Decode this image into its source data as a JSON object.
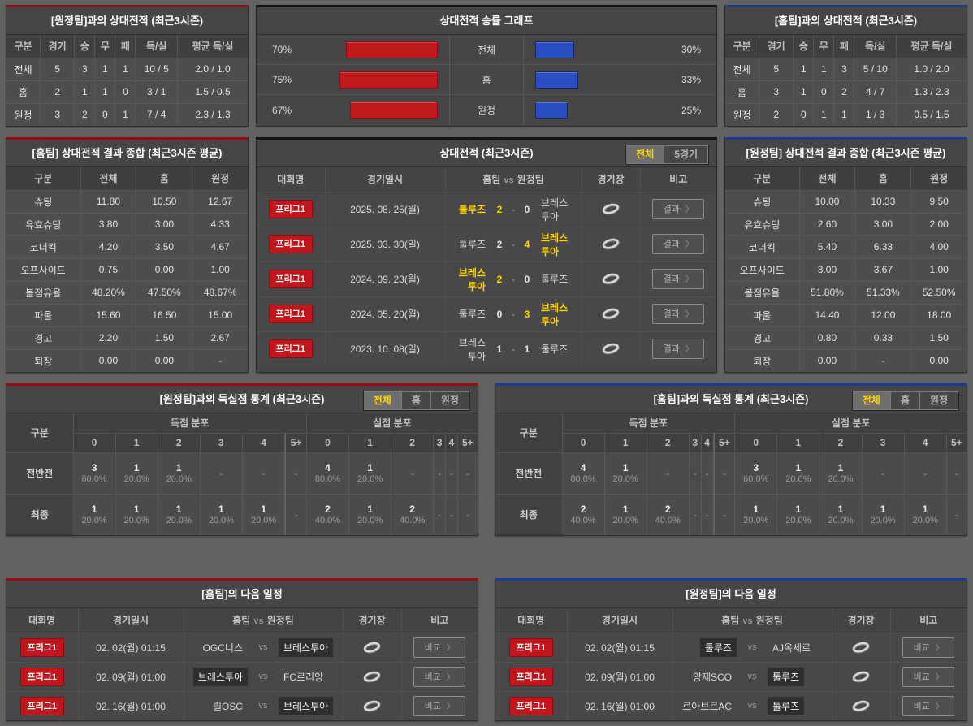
{
  "ui": {
    "chevron": "〉",
    "score_sep": "-"
  },
  "colors": {
    "accent_red": "#8e1014",
    "accent_blue": "#1e3a8f",
    "bar_red": "#c2191f",
    "bar_blue": "#2a4fc0",
    "highlight_yellow": "#ffd400",
    "badge_red": "#c3161c",
    "panel_bg": "#464646",
    "page_bg": "#636363"
  },
  "chart_data": {
    "type": "bar",
    "orientation": "horizontal",
    "title": "상대전적 승률 그래프",
    "categories": [
      "전체",
      "홈",
      "원정"
    ],
    "series": [
      {
        "name": "left-red",
        "color": "#c2191f",
        "unit": "%",
        "values": [
          70,
          75,
          67
        ]
      },
      {
        "name": "right-blue",
        "color": "#2a4fc0",
        "unit": "%",
        "values": [
          30,
          33,
          25
        ]
      }
    ],
    "xlim": [
      0,
      100
    ],
    "grid": false,
    "legend": "none"
  },
  "panels": {
    "h2h_vs_away": {
      "title": "[원정팀]과의 상대전적 (최근3시즌)",
      "headers": [
        "구분",
        "경기",
        "승",
        "무",
        "패",
        "득/실",
        "평균 득/실"
      ],
      "rows": [
        [
          "전체",
          "5",
          "3",
          "1",
          "1",
          "10 / 5",
          "2.0 / 1.0"
        ],
        [
          "홈",
          "2",
          "1",
          "1",
          "0",
          "3 / 1",
          "1.5 / 0.5"
        ],
        [
          "원정",
          "3",
          "2",
          "0",
          "1",
          "7 / 4",
          "2.3 / 1.3"
        ]
      ]
    },
    "winrate": {
      "title": "상대전적 승률 그래프",
      "rows": [
        {
          "label": "전체",
          "left_label": "70%",
          "left_value": 70,
          "right_label": "30%",
          "right_value": 30
        },
        {
          "label": "홈",
          "left_label": "75%",
          "left_value": 75,
          "right_label": "33%",
          "right_value": 33
        },
        {
          "label": "원정",
          "left_label": "67%",
          "left_value": 67,
          "right_label": "25%",
          "right_value": 25
        }
      ]
    },
    "h2h_vs_home": {
      "title": "[홈팀]과의 상대전적 (최근3시즌)",
      "headers": [
        "구분",
        "경기",
        "승",
        "무",
        "패",
        "득/실",
        "평균 득/실"
      ],
      "rows": [
        [
          "전체",
          "5",
          "1",
          "1",
          "3",
          "5 / 10",
          "1.0 / 2.0"
        ],
        [
          "홈",
          "3",
          "1",
          "0",
          "2",
          "4 / 7",
          "1.3 / 2.3"
        ],
        [
          "원정",
          "2",
          "0",
          "1",
          "1",
          "1 / 3",
          "0.5 / 1.5"
        ]
      ]
    },
    "home_summary": {
      "title": "[홈팀] 상대전적 결과 종합 (최근3시즌 평균)",
      "headers": [
        "구분",
        "전체",
        "홈",
        "원정"
      ],
      "rows": [
        [
          "슈팅",
          "11.80",
          "10.50",
          "12.67"
        ],
        [
          "유효슈팅",
          "3.80",
          "3.00",
          "4.33"
        ],
        [
          "코너킥",
          "4.20",
          "3.50",
          "4.67"
        ],
        [
          "오프사이드",
          "0.75",
          "0.00",
          "1.00"
        ],
        [
          "볼점유율",
          "48.20%",
          "47.50%",
          "48.67%"
        ],
        [
          "파울",
          "15.60",
          "16.50",
          "15.00"
        ],
        [
          "경고",
          "2.20",
          "1.50",
          "2.67"
        ],
        [
          "퇴장",
          "0.00",
          "0.00",
          "-"
        ]
      ]
    },
    "away_summary": {
      "title": "[원정팀] 상대전적 결과 종합 (최근3시즌 평균)",
      "headers": [
        "구분",
        "전체",
        "홈",
        "원정"
      ],
      "rows": [
        [
          "슈팅",
          "10.00",
          "10.33",
          "9.50"
        ],
        [
          "유효슈팅",
          "2.60",
          "3.00",
          "2.00"
        ],
        [
          "코너킥",
          "5.40",
          "6.33",
          "4.00"
        ],
        [
          "오프사이드",
          "3.00",
          "3.67",
          "1.00"
        ],
        [
          "볼점유율",
          "51.80%",
          "51.33%",
          "52.50%"
        ],
        [
          "파울",
          "14.40",
          "12.00",
          "18.00"
        ],
        [
          "경고",
          "0.80",
          "0.33",
          "1.50"
        ],
        [
          "퇴장",
          "0.00",
          "-",
          "0.00"
        ]
      ]
    },
    "matches": {
      "title": "상대전적 (최근3시즌)",
      "tabs": [
        {
          "label": "전체",
          "active": true
        },
        {
          "label": "5경기",
          "active": false
        }
      ],
      "headers": {
        "league": "대회명",
        "date": "경기일시",
        "home": "홈팀",
        "vs": "vs",
        "away": "원정팀",
        "stadium": "경기장",
        "note": "비고"
      },
      "button_label": "결과",
      "rows": [
        {
          "league": "프리그1",
          "date": "2025. 08. 25(월)",
          "home": "툴루즈",
          "home_score": "2",
          "away_score": "0",
          "away": "브레스투아",
          "home_win": true
        },
        {
          "league": "프리그1",
          "date": "2025. 03. 30(일)",
          "home": "툴루즈",
          "home_score": "2",
          "away_score": "4",
          "away": "브레스투아",
          "away_win": true
        },
        {
          "league": "프리그1",
          "date": "2024. 09. 23(월)",
          "home": "브레스투아",
          "home_score": "2",
          "away_score": "0",
          "away": "툴루즈",
          "home_win": true
        },
        {
          "league": "프리그1",
          "date": "2024. 05. 20(월)",
          "home": "툴루즈",
          "home_score": "0",
          "away_score": "3",
          "away": "브레스투아",
          "away_win": true
        },
        {
          "league": "프리그1",
          "date": "2023. 10. 08(일)",
          "home": "브레스투아",
          "home_score": "1",
          "away_score": "1",
          "away": "툴루즈"
        }
      ]
    },
    "goals_vs_away": {
      "title": "[원정팀]과의 득실점 통계 (최근3시즌)",
      "tabs": [
        {
          "label": "전체",
          "active": true
        },
        {
          "label": "홈",
          "active": false
        },
        {
          "label": "원정",
          "active": false
        }
      ],
      "col_label": "구분",
      "group_scored": "득점 분포",
      "group_conceded": "실점 분포",
      "score_headers": [
        "0",
        "1",
        "2",
        "3",
        "4",
        "5+",
        "0",
        "1",
        "2",
        "3",
        "4",
        "5+"
      ],
      "rows": [
        {
          "label": "전반전",
          "cells": [
            {
              "n": "3",
              "p": "60.0%"
            },
            {
              "n": "1",
              "p": "20.0%"
            },
            {
              "n": "1",
              "p": "20.0%"
            },
            {
              "n": "-",
              "p": ""
            },
            {
              "n": "-",
              "p": ""
            },
            {
              "n": "-",
              "p": ""
            },
            {
              "n": "4",
              "p": "80.0%"
            },
            {
              "n": "1",
              "p": "20.0%"
            },
            {
              "n": "-",
              "p": ""
            },
            {
              "n": "-",
              "p": ""
            },
            {
              "n": "-",
              "p": ""
            },
            {
              "n": "-",
              "p": ""
            }
          ]
        },
        {
          "label": "최종",
          "cells": [
            {
              "n": "1",
              "p": "20.0%"
            },
            {
              "n": "1",
              "p": "20.0%"
            },
            {
              "n": "1",
              "p": "20.0%"
            },
            {
              "n": "1",
              "p": "20.0%"
            },
            {
              "n": "1",
              "p": "20.0%"
            },
            {
              "n": "-",
              "p": ""
            },
            {
              "n": "2",
              "p": "40.0%"
            },
            {
              "n": "1",
              "p": "20.0%"
            },
            {
              "n": "2",
              "p": "40.0%"
            },
            {
              "n": "-",
              "p": ""
            },
            {
              "n": "-",
              "p": ""
            },
            {
              "n": "-",
              "p": ""
            }
          ]
        }
      ]
    },
    "goals_vs_home": {
      "title": "[홈팀]과의 득실점 통계 (최근3시즌)",
      "tabs": [
        {
          "label": "전체",
          "active": true
        },
        {
          "label": "홈",
          "active": false
        },
        {
          "label": "원정",
          "active": false
        }
      ],
      "col_label": "구분",
      "group_scored": "득점 분포",
      "group_conceded": "실점 분포",
      "score_headers": [
        "0",
        "1",
        "2",
        "3",
        "4",
        "5+",
        "0",
        "1",
        "2",
        "3",
        "4",
        "5+"
      ],
      "rows": [
        {
          "label": "전반전",
          "cells": [
            {
              "n": "4",
              "p": "80.0%"
            },
            {
              "n": "1",
              "p": "20.0%"
            },
            {
              "n": "-",
              "p": ""
            },
            {
              "n": "-",
              "p": ""
            },
            {
              "n": "-",
              "p": ""
            },
            {
              "n": "-",
              "p": ""
            },
            {
              "n": "3",
              "p": "60.0%"
            },
            {
              "n": "1",
              "p": "20.0%"
            },
            {
              "n": "1",
              "p": "20.0%"
            },
            {
              "n": "-",
              "p": ""
            },
            {
              "n": "-",
              "p": ""
            },
            {
              "n": "-",
              "p": ""
            }
          ]
        },
        {
          "label": "최종",
          "cells": [
            {
              "n": "2",
              "p": "40.0%"
            },
            {
              "n": "1",
              "p": "20.0%"
            },
            {
              "n": "2",
              "p": "40.0%"
            },
            {
              "n": "-",
              "p": ""
            },
            {
              "n": "-",
              "p": ""
            },
            {
              "n": "-",
              "p": ""
            },
            {
              "n": "1",
              "p": "20.0%"
            },
            {
              "n": "1",
              "p": "20.0%"
            },
            {
              "n": "1",
              "p": "20.0%"
            },
            {
              "n": "1",
              "p": "20.0%"
            },
            {
              "n": "1",
              "p": "20.0%"
            },
            {
              "n": "-",
              "p": ""
            }
          ]
        }
      ]
    },
    "home_schedule": {
      "title": "[홈팀]의 다음 일정",
      "headers": {
        "league": "대회명",
        "date": "경기일시",
        "home": "홈팀",
        "vs": "vs",
        "away": "원정팀",
        "stadium": "경기장",
        "note": "비고"
      },
      "button_label": "비교",
      "rows": [
        {
          "league": "프리그1",
          "date": "02. 02(월) 01:15",
          "home": "OGC니스",
          "away": "브레스투아",
          "away_hl": true
        },
        {
          "league": "프리그1",
          "date": "02. 09(월) 01:00",
          "home": "브레스투아",
          "home_hl": true,
          "away": "FC로리앙"
        },
        {
          "league": "프리그1",
          "date": "02. 16(월) 01:00",
          "home": "릴OSC",
          "away": "브레스투아",
          "away_hl": true
        }
      ]
    },
    "away_schedule": {
      "title": "[원정팀]의 다음 일정",
      "headers": {
        "league": "대회명",
        "date": "경기일시",
        "home": "홈팀",
        "vs": "vs",
        "away": "원정팀",
        "stadium": "경기장",
        "note": "비고"
      },
      "button_label": "비교",
      "rows": [
        {
          "league": "프리그1",
          "date": "02. 02(월) 01:15",
          "home": "툴루즈",
          "home_hl": true,
          "away": "AJ옥세르"
        },
        {
          "league": "프리그1",
          "date": "02. 09(월) 01:00",
          "home": "앙제SCO",
          "away": "툴루즈",
          "away_hl": true
        },
        {
          "league": "프리그1",
          "date": "02. 16(월) 01:00",
          "home": "르아브르AC",
          "away": "툴루즈",
          "away_hl": true
        }
      ]
    }
  }
}
